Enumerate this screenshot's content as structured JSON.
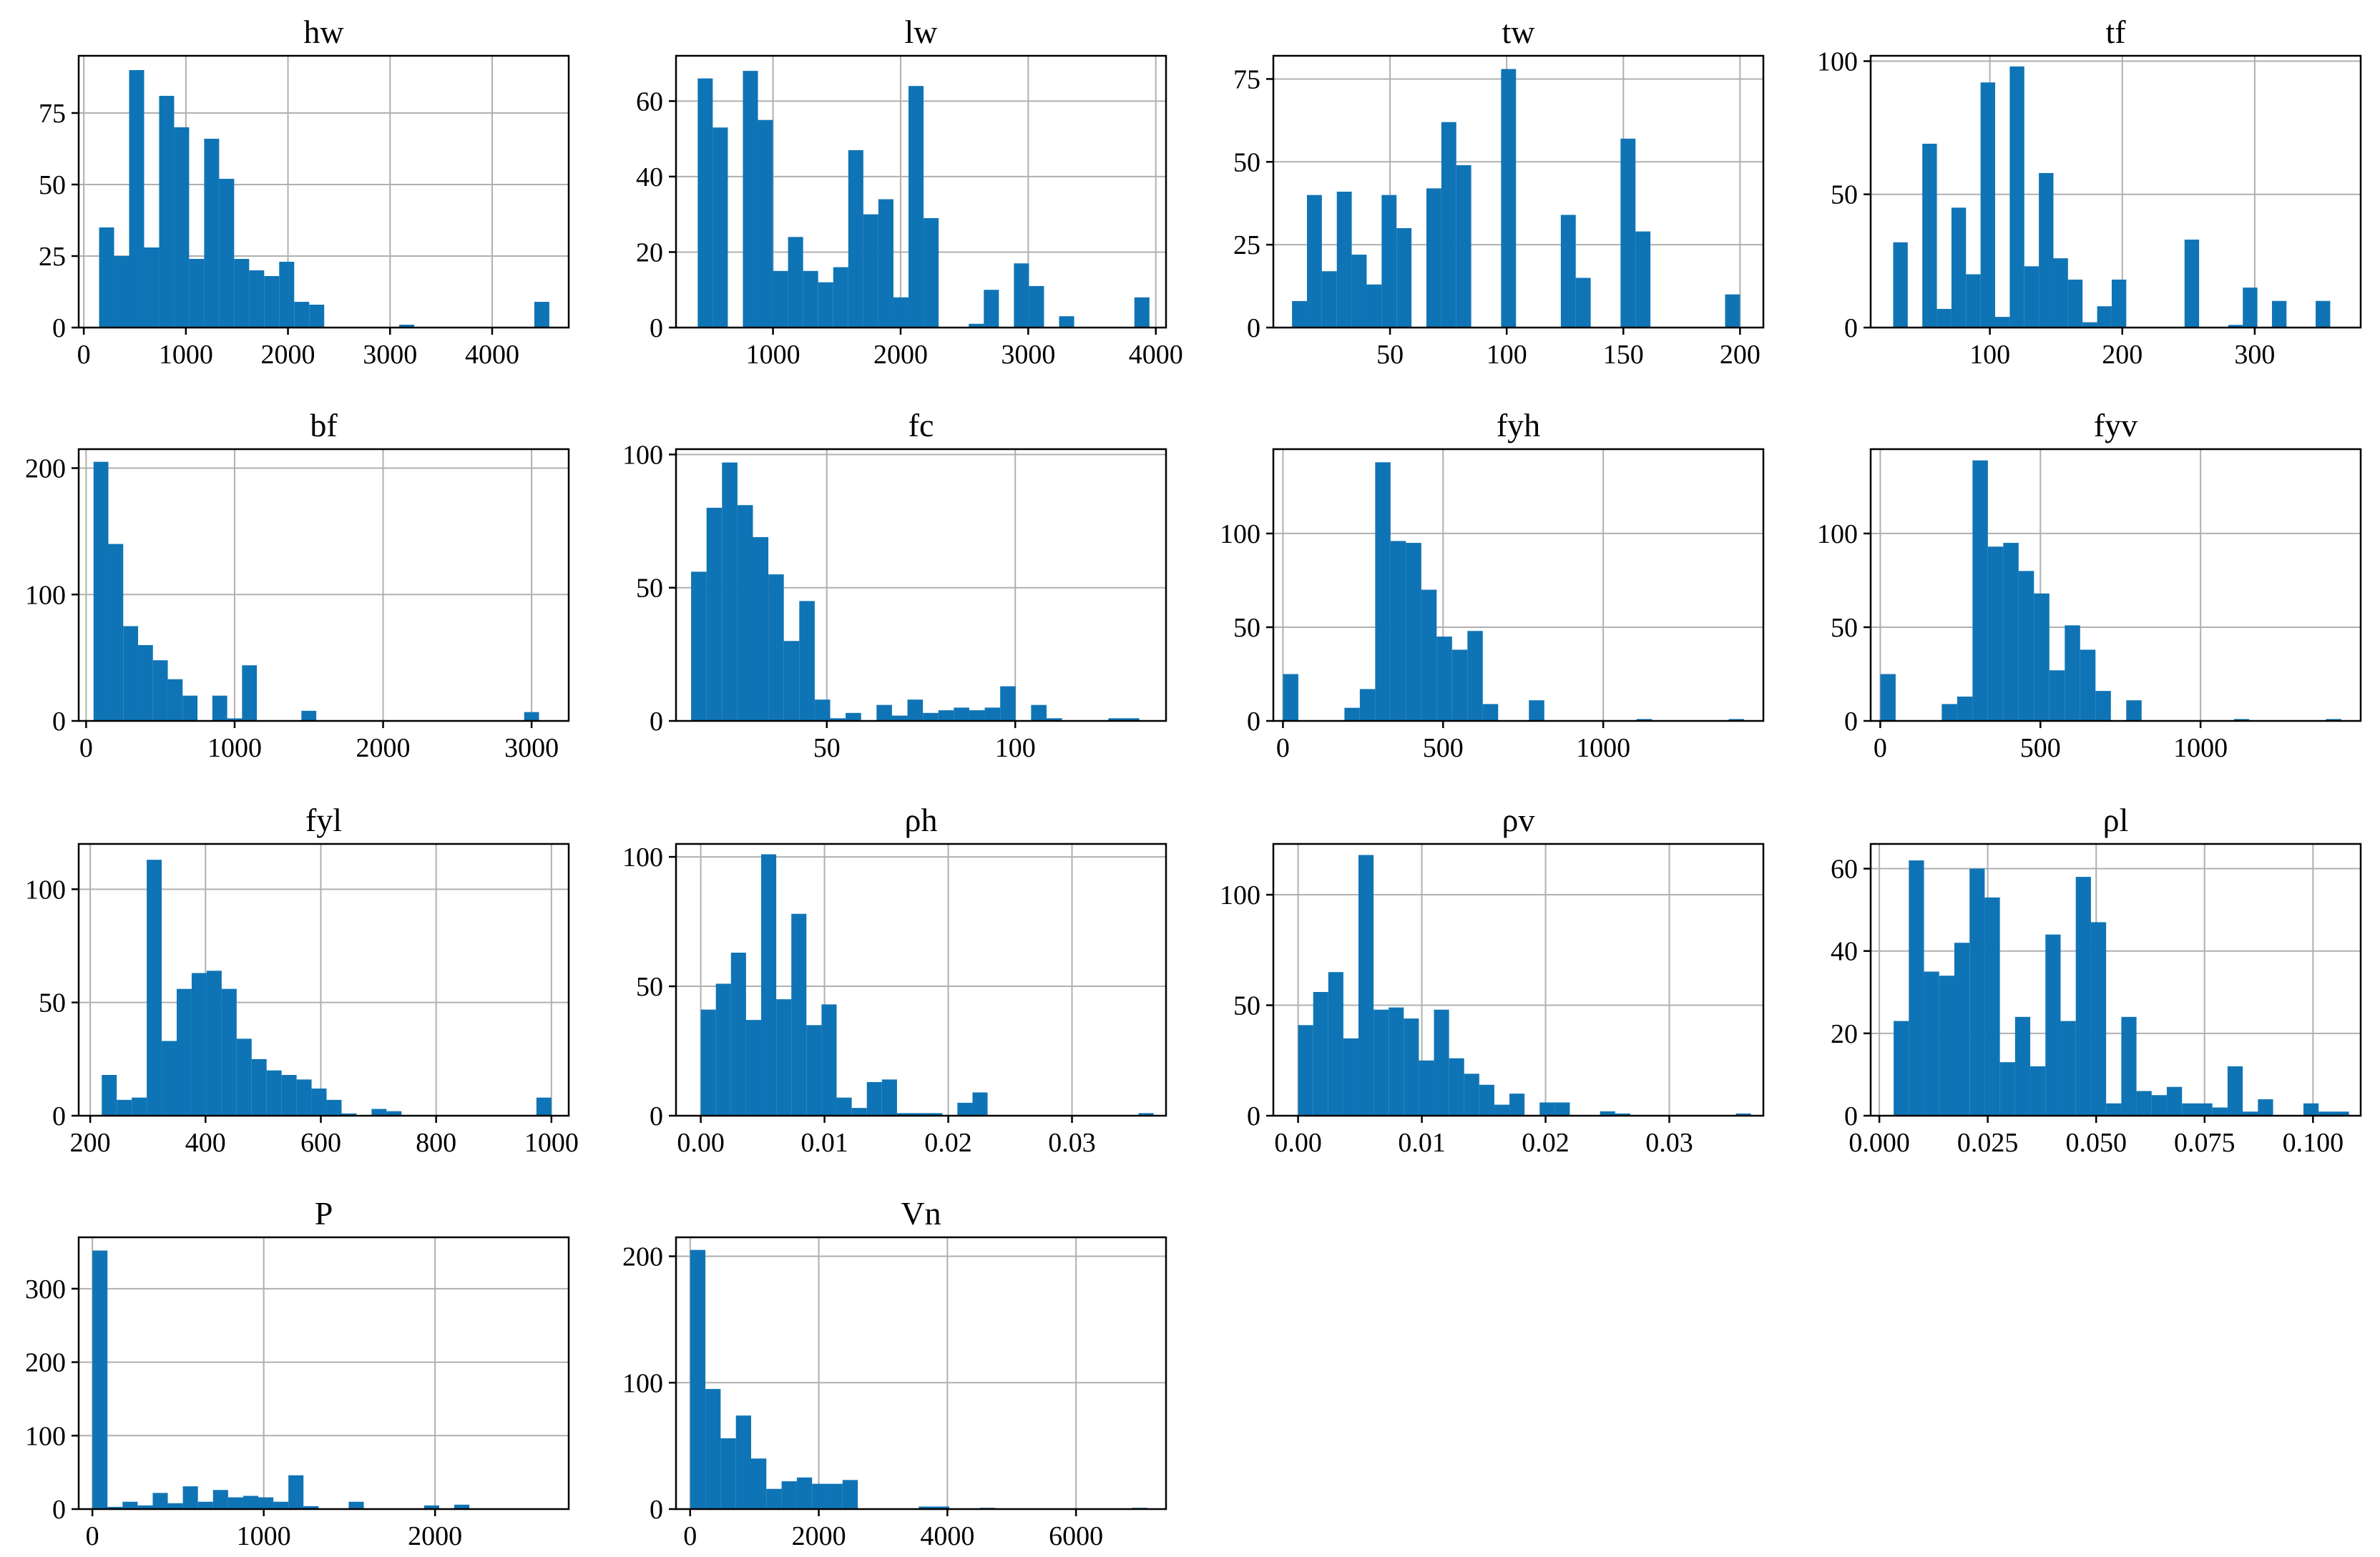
{
  "figure": {
    "bar_color": "#0f74b5",
    "grid_color": "#b0b0b0"
  },
  "chart_data": [
    {
      "type": "bar",
      "title": "hw",
      "xlabel": "",
      "ylabel": "",
      "grid": true,
      "xlim": [
        -50,
        4750
      ],
      "ylim": [
        0,
        95
      ],
      "xticks": [
        0,
        1000,
        2000,
        3000,
        4000
      ],
      "xtick_labels": [
        "0",
        "1000",
        "2000",
        "3000",
        "4000"
      ],
      "yticks": [
        0,
        25,
        50,
        75
      ],
      "ytick_labels": [
        "0",
        "25",
        "50",
        "75"
      ],
      "bin_start": 150,
      "bin_width": 147,
      "values": [
        35,
        25,
        90,
        28,
        81,
        70,
        24,
        66,
        52,
        24,
        20,
        18,
        23,
        9,
        8,
        0,
        0,
        0,
        0,
        0,
        1,
        0,
        0,
        0,
        0,
        0,
        0,
        0,
        0,
        9
      ]
    },
    {
      "type": "bar",
      "title": "lw",
      "xlabel": "",
      "ylabel": "",
      "grid": true,
      "xlim": [
        240,
        4080
      ],
      "ylim": [
        0,
        72
      ],
      "xticks": [
        1000,
        2000,
        3000,
        4000
      ],
      "xtick_labels": [
        "1000",
        "2000",
        "3000",
        "4000"
      ],
      "yticks": [
        0,
        20,
        40,
        60
      ],
      "ytick_labels": [
        "0",
        "20",
        "40",
        "60"
      ],
      "bin_start": 410,
      "bin_width": 118,
      "values": [
        66,
        53,
        0,
        68,
        55,
        15,
        24,
        15,
        12,
        16,
        47,
        30,
        34,
        8,
        64,
        29,
        0,
        0,
        1,
        10,
        0,
        17,
        11,
        0,
        3,
        0,
        0,
        0,
        0,
        8
      ]
    },
    {
      "type": "bar",
      "title": "tw",
      "xlabel": "",
      "ylabel": "",
      "grid": true,
      "xlim": [
        0,
        210
      ],
      "ylim": [
        0,
        82
      ],
      "xticks": [
        50,
        100,
        150,
        200
      ],
      "xtick_labels": [
        "50",
        "100",
        "150",
        "200"
      ],
      "yticks": [
        0,
        25,
        50,
        75
      ],
      "ytick_labels": [
        "0",
        "25",
        "50",
        "75"
      ],
      "bin_start": 8,
      "bin_width": 6.4,
      "values": [
        8,
        40,
        17,
        41,
        22,
        13,
        40,
        30,
        0,
        42,
        62,
        49,
        0,
        0,
        78,
        0,
        0,
        0,
        34,
        15,
        0,
        0,
        57,
        29,
        0,
        0,
        0,
        0,
        0,
        10
      ]
    },
    {
      "type": "bar",
      "title": "tf",
      "xlabel": "",
      "ylabel": "",
      "grid": true,
      "xlim": [
        10,
        380
      ],
      "ylim": [
        0,
        102
      ],
      "xticks": [
        100,
        200,
        300
      ],
      "xtick_labels": [
        "100",
        "200",
        "300"
      ],
      "yticks": [
        0,
        50,
        100
      ],
      "ytick_labels": [
        "0",
        "50",
        "100"
      ],
      "bin_start": 27,
      "bin_width": 11,
      "values": [
        32,
        0,
        69,
        7,
        45,
        20,
        92,
        4,
        98,
        23,
        58,
        26,
        18,
        2,
        8,
        18,
        0,
        0,
        0,
        0,
        33,
        0,
        0,
        1,
        15,
        0,
        10,
        0,
        0,
        10
      ]
    },
    {
      "type": "bar",
      "title": "bf",
      "xlabel": "",
      "ylabel": "",
      "grid": true,
      "xlim": [
        -50,
        3250
      ],
      "ylim": [
        0,
        215
      ],
      "xticks": [
        0,
        1000,
        2000,
        3000
      ],
      "xtick_labels": [
        "0",
        "1000",
        "2000",
        "3000"
      ],
      "yticks": [
        0,
        100,
        200
      ],
      "ytick_labels": [
        "0",
        "100",
        "200"
      ],
      "bin_start": 50,
      "bin_width": 100,
      "values": [
        205,
        140,
        75,
        60,
        48,
        33,
        20,
        0,
        20,
        2,
        44,
        0,
        0,
        0,
        8,
        0,
        0,
        0,
        0,
        0,
        0,
        0,
        0,
        0,
        0,
        0,
        0,
        0,
        0,
        7
      ]
    },
    {
      "type": "bar",
      "title": "fc",
      "xlabel": "",
      "ylabel": "",
      "grid": true,
      "xlim": [
        10,
        140
      ],
      "ylim": [
        0,
        102
      ],
      "xticks": [
        50,
        100
      ],
      "xtick_labels": [
        "50",
        "100"
      ],
      "yticks": [
        0,
        50,
        100
      ],
      "ytick_labels": [
        "0",
        "50",
        "100"
      ],
      "bin_start": 14,
      "bin_width": 4.1,
      "values": [
        56,
        80,
        97,
        81,
        69,
        55,
        30,
        45,
        8,
        1,
        3,
        0,
        6,
        2,
        8,
        3,
        4,
        5,
        4,
        5,
        13,
        0,
        6,
        1,
        0,
        0,
        0,
        1,
        1,
        0
      ]
    },
    {
      "type": "bar",
      "title": "fyh",
      "xlabel": "",
      "ylabel": "",
      "grid": true,
      "xlim": [
        -30,
        1500
      ],
      "ylim": [
        0,
        145
      ],
      "xticks": [
        0,
        500,
        1000
      ],
      "xtick_labels": [
        "0",
        "500",
        "1000"
      ],
      "yticks": [
        0,
        50,
        100
      ],
      "ytick_labels": [
        "0",
        "50",
        "100"
      ],
      "bin_start": 0,
      "bin_width": 48,
      "values": [
        25,
        0,
        0,
        0,
        7,
        17,
        138,
        96,
        95,
        70,
        45,
        38,
        48,
        9,
        0,
        0,
        11,
        0,
        0,
        0,
        0,
        0,
        0,
        1,
        0,
        0,
        0,
        0,
        0,
        1
      ]
    },
    {
      "type": "bar",
      "title": "fyv",
      "xlabel": "",
      "ylabel": "",
      "grid": true,
      "xlim": [
        -30,
        1500
      ],
      "ylim": [
        0,
        145
      ],
      "xticks": [
        0,
        500,
        1000
      ],
      "xtick_labels": [
        "0",
        "500",
        "1000"
      ],
      "yticks": [
        0,
        50,
        100
      ],
      "ytick_labels": [
        "0",
        "50",
        "100"
      ],
      "bin_start": 0,
      "bin_width": 48,
      "values": [
        25,
        0,
        0,
        0,
        9,
        13,
        139,
        93,
        95,
        80,
        68,
        27,
        51,
        38,
        16,
        0,
        11,
        0,
        0,
        0,
        0,
        0,
        0,
        1,
        0,
        0,
        0,
        0,
        0,
        1
      ]
    },
    {
      "type": "bar",
      "title": "fyl",
      "xlabel": "",
      "ylabel": "",
      "grid": true,
      "xlim": [
        180,
        1030
      ],
      "ylim": [
        0,
        120
      ],
      "xticks": [
        200,
        400,
        600,
        800,
        1000
      ],
      "xtick_labels": [
        "200",
        "400",
        "600",
        "800",
        "1000"
      ],
      "yticks": [
        0,
        50,
        100
      ],
      "ytick_labels": [
        "0",
        "50",
        "100"
      ],
      "bin_start": 220,
      "bin_width": 26,
      "values": [
        18,
        7,
        8,
        113,
        33,
        56,
        63,
        64,
        56,
        34,
        25,
        20,
        18,
        16,
        12,
        7,
        1,
        0,
        3,
        2,
        0,
        0,
        0,
        0,
        0,
        0,
        0,
        0,
        0,
        8
      ]
    },
    {
      "type": "bar",
      "title": "ρh",
      "xlabel": "",
      "ylabel": "",
      "grid": true,
      "xlim": [
        -0.002,
        0.0376
      ],
      "ylim": [
        0,
        105
      ],
      "xticks": [
        0,
        0.01,
        0.02,
        0.03
      ],
      "xtick_labels": [
        "0.00",
        "0.01",
        "0.02",
        "0.03"
      ],
      "yticks": [
        0,
        50,
        100
      ],
      "ytick_labels": [
        "0",
        "50",
        "100"
      ],
      "bin_start": 0,
      "bin_width": 0.00122,
      "values": [
        41,
        51,
        63,
        37,
        101,
        45,
        78,
        35,
        43,
        7,
        3,
        13,
        14,
        1,
        1,
        1,
        0,
        5,
        9,
        0,
        0,
        0,
        0,
        0,
        0,
        0,
        0,
        0,
        0,
        1
      ]
    },
    {
      "type": "bar",
      "title": "ρv",
      "xlabel": "",
      "ylabel": "",
      "grid": true,
      "xlim": [
        -0.002,
        0.0376
      ],
      "ylim": [
        0,
        123
      ],
      "xticks": [
        0,
        0.01,
        0.02,
        0.03
      ],
      "xtick_labels": [
        "0.00",
        "0.01",
        "0.02",
        "0.03"
      ],
      "yticks": [
        0,
        50,
        100
      ],
      "ytick_labels": [
        "0",
        "50",
        "100"
      ],
      "bin_start": 0,
      "bin_width": 0.00122,
      "values": [
        41,
        56,
        65,
        35,
        118,
        48,
        49,
        44,
        25,
        48,
        26,
        19,
        14,
        5,
        10,
        0,
        6,
        6,
        0,
        0,
        2,
        1,
        0,
        0,
        0,
        0,
        0,
        0,
        0,
        1
      ]
    },
    {
      "type": "bar",
      "title": "ρl",
      "xlabel": "",
      "ylabel": "",
      "grid": true,
      "xlim": [
        -0.002,
        0.111
      ],
      "ylim": [
        0,
        66
      ],
      "xticks": [
        0,
        0.025,
        0.05,
        0.075,
        0.1
      ],
      "xtick_labels": [
        "0.000",
        "0.025",
        "0.050",
        "0.075",
        "0.100"
      ],
      "yticks": [
        0,
        20,
        40,
        60
      ],
      "ytick_labels": [
        "0",
        "20",
        "40",
        "60"
      ],
      "bin_start": 0.0033,
      "bin_width": 0.0035,
      "values": [
        23,
        62,
        35,
        34,
        42,
        60,
        53,
        13,
        24,
        12,
        44,
        23,
        58,
        47,
        3,
        24,
        6,
        5,
        7,
        3,
        3,
        2,
        12,
        1,
        4,
        0,
        0,
        3,
        1,
        1
      ]
    },
    {
      "type": "bar",
      "title": "P",
      "xlabel": "",
      "ylabel": "",
      "grid": true,
      "xlim": [
        -80,
        2780
      ],
      "ylim": [
        0,
        370
      ],
      "xticks": [
        0,
        1000,
        2000
      ],
      "xtick_labels": [
        "0",
        "1000",
        "2000"
      ],
      "yticks": [
        0,
        100,
        200,
        300
      ],
      "ytick_labels": [
        "0",
        "100",
        "200",
        "300"
      ],
      "bin_start": 0,
      "bin_width": 88,
      "values": [
        352,
        3,
        10,
        5,
        22,
        8,
        31,
        10,
        26,
        16,
        18,
        16,
        10,
        46,
        4,
        0,
        0,
        10,
        0,
        0,
        0,
        0,
        5,
        0,
        6,
        0,
        0,
        0,
        0,
        0
      ]
    },
    {
      "type": "bar",
      "title": "Vn",
      "xlabel": "",
      "ylabel": "",
      "grid": true,
      "xlim": [
        -220,
        7400
      ],
      "ylim": [
        0,
        215
      ],
      "xticks": [
        0,
        2000,
        4000,
        6000
      ],
      "xtick_labels": [
        "0",
        "2000",
        "4000",
        "6000"
      ],
      "yticks": [
        0,
        100,
        200
      ],
      "ytick_labels": [
        "0",
        "100",
        "200"
      ],
      "bin_start": 0,
      "bin_width": 237,
      "values": [
        205,
        95,
        56,
        74,
        40,
        16,
        22,
        25,
        20,
        20,
        23,
        0,
        0,
        0,
        0,
        2,
        2,
        0,
        0,
        1,
        0,
        0,
        0,
        0,
        0,
        0,
        0,
        0,
        0,
        1
      ]
    }
  ]
}
